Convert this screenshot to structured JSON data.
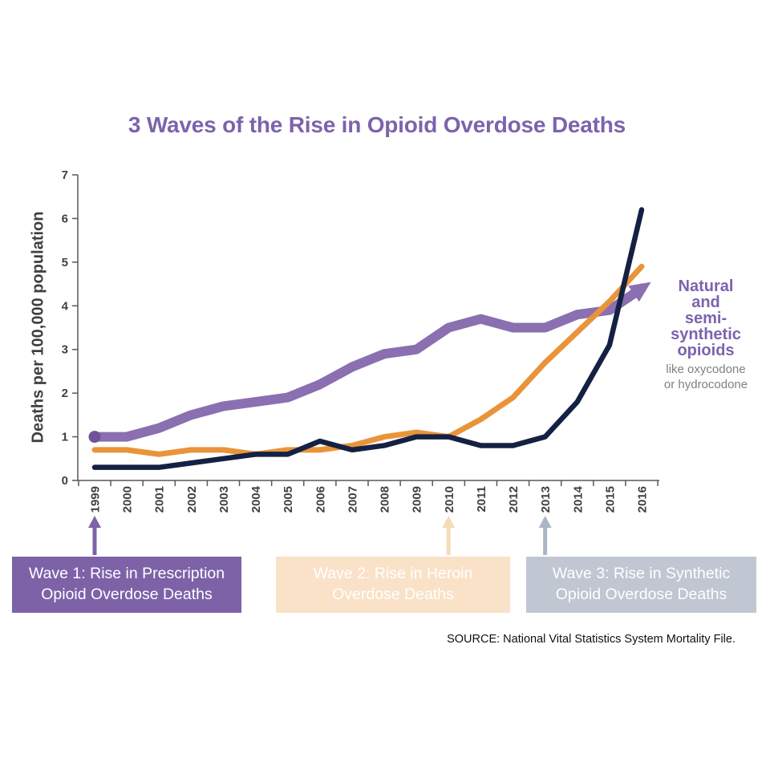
{
  "title": "3 Waves of the Rise in Opioid Overdose Deaths",
  "colors": {
    "title": "#7C63AC",
    "axis": "#595959",
    "tick_label": "#404040",
    "ylabel": "#3F3F3F",
    "annotation_main": "#7C63AC",
    "annotation_sub": "#808080",
    "source_text": "#111111"
  },
  "chart_data": {
    "type": "line",
    "title": "3 Waves of the Rise in Opioid Overdose Deaths",
    "xlabel": "",
    "ylabel": "Deaths per 100,000 population",
    "ylim": [
      0,
      7
    ],
    "yticks": [
      0,
      1,
      2,
      3,
      4,
      5,
      6,
      7
    ],
    "grid": false,
    "legend_position": "direct-annotation",
    "x": [
      "1999",
      "2000",
      "2001",
      "2002",
      "2003",
      "2004",
      "2005",
      "2006",
      "2007",
      "2008",
      "2009",
      "2010",
      "2011",
      "2012",
      "2013",
      "2014",
      "2015",
      "2016"
    ],
    "series": [
      {
        "name": "Natural and semi-synthetic opioids",
        "color": "#8A6FB1",
        "width": 12,
        "start_dot": true,
        "start_dot_color": "#71539B",
        "end_arrow": true,
        "values": [
          1.0,
          1.0,
          1.2,
          1.5,
          1.7,
          1.8,
          1.9,
          2.2,
          2.6,
          2.9,
          3.0,
          3.5,
          3.7,
          3.5,
          3.5,
          3.8,
          3.9,
          4.4
        ]
      },
      {
        "name": "Heroin",
        "color": "#E9943A",
        "width": 7,
        "values": [
          0.7,
          0.7,
          0.6,
          0.7,
          0.7,
          0.6,
          0.7,
          0.7,
          0.8,
          1.0,
          1.1,
          1.0,
          1.4,
          1.9,
          2.7,
          3.4,
          4.1,
          4.9
        ]
      },
      {
        "name": "Synthetic opioids",
        "color": "#142143",
        "width": 6.5,
        "values": [
          0.3,
          0.3,
          0.3,
          0.4,
          0.5,
          0.6,
          0.6,
          0.9,
          0.7,
          0.8,
          1.0,
          1.0,
          0.8,
          0.8,
          1.0,
          1.8,
          3.1,
          6.2
        ]
      }
    ]
  },
  "annotation": {
    "lines": [
      "Natural",
      "and",
      "semi-",
      "synthetic",
      "opioids"
    ],
    "sub_lines": [
      "like oxycodone",
      "or hydrocodone"
    ]
  },
  "waves": [
    {
      "label_line1": "Wave 1: Rise in Prescription",
      "label_line2": "Opioid Overdose Deaths",
      "bg": "#7D62A8",
      "text_color": "#FFFFFF",
      "arrow_year": "1999",
      "arrow_color": "#7D62A8"
    },
    {
      "label_line1": "Wave 2: Rise in Heroin",
      "label_line2": "Overdose Deaths",
      "bg": "#F9E2C7",
      "text_color": "#FFFFFF",
      "arrow_year": "2010",
      "arrow_color": "#F5DBB8"
    },
    {
      "label_line1": "Wave 3: Rise in Synthetic",
      "label_line2": "Opioid Overdose Deaths",
      "bg": "#C0C6D2",
      "text_color": "#FFFFFF",
      "arrow_year": "2013",
      "arrow_color": "#ABB5C6"
    }
  ],
  "source": "SOURCE: National Vital Statistics System Mortality File."
}
